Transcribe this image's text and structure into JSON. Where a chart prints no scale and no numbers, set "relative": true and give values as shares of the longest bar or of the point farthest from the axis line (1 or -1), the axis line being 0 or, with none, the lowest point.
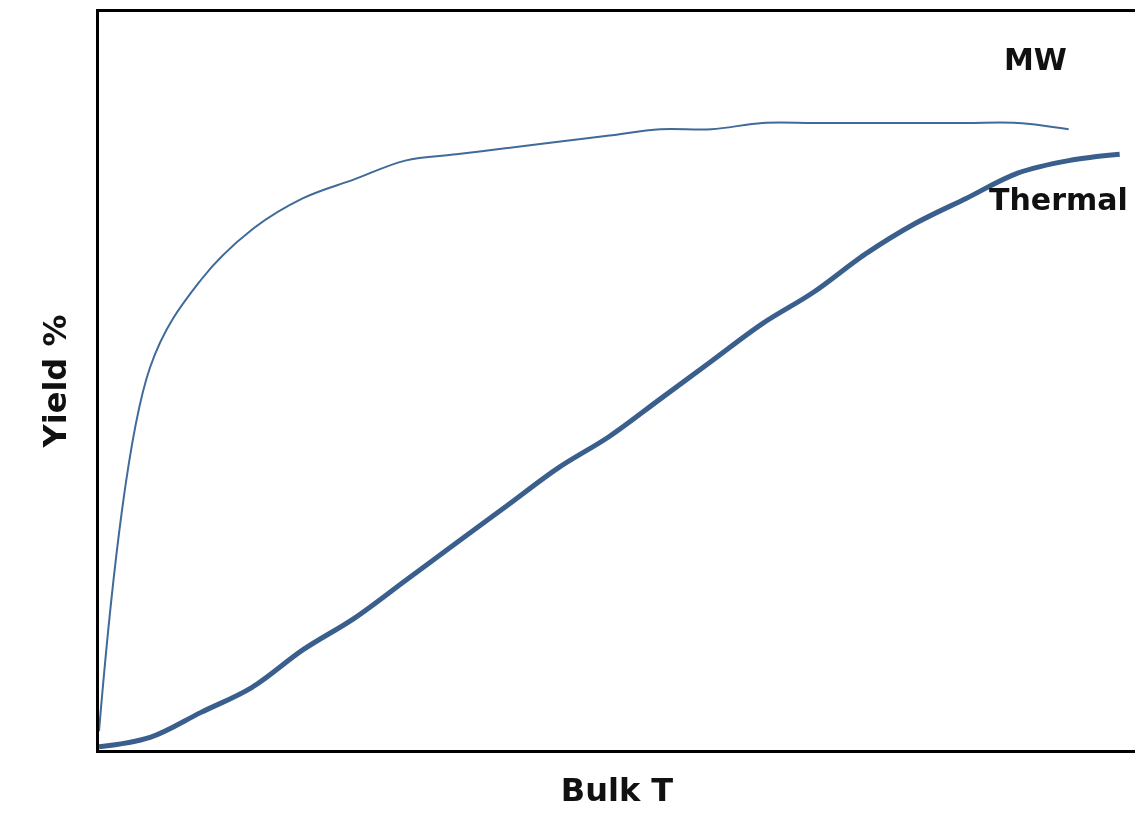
{
  "chart_data": {
    "type": "line",
    "relative": true,
    "xlabel": "Bulk T",
    "ylabel": "Yield %",
    "grid": false,
    "legend": false,
    "marker": "none",
    "line_style": "solid",
    "categories": [
      null,
      null,
      null,
      null,
      null,
      null,
      null,
      null,
      null,
      null,
      null,
      null,
      null,
      null,
      null,
      null,
      null,
      null,
      null,
      null,
      null
    ],
    "series": [
      {
        "name": "MW",
        "color": "#3f6a99",
        "values": [
          0.03,
          0.61,
          0.75,
          0.83,
          0.88,
          0.91,
          0.94,
          0.95,
          0.96,
          0.97,
          0.98,
          0.99,
          0.99,
          1,
          1,
          1,
          1,
          1,
          1,
          0.99,
          null
        ]
      },
      {
        "name": "Thermal",
        "color": "#3a5f8d",
        "values": [
          0.005,
          0.02,
          0.06,
          0.1,
          0.16,
          0.21,
          0.27,
          0.33,
          0.39,
          0.45,
          0.5,
          0.56,
          0.62,
          0.68,
          0.73,
          0.79,
          0.84,
          0.88,
          0.92,
          0.94,
          0.95
        ]
      }
    ]
  }
}
